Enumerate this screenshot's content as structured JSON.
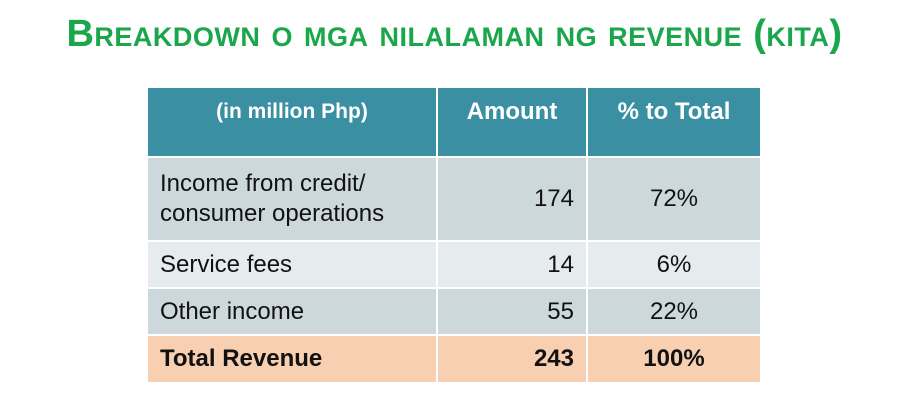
{
  "title": "Breakdown o mga nilalaman ng revenue (kita)",
  "table": {
    "headers": [
      "(in million Php)",
      "Amount",
      "% to Total"
    ],
    "rows": [
      {
        "label": "Income from credit/ consumer operations",
        "amount": "174",
        "percent": "72%"
      },
      {
        "label": "Service fees",
        "amount": "14",
        "percent": "6%"
      },
      {
        "label": "Other income",
        "amount": "55",
        "percent": "22%"
      }
    ],
    "total": {
      "label": "Total Revenue",
      "amount": "243",
      "percent": "100%"
    }
  },
  "colors": {
    "title": "#1aa64b",
    "header_bg": "#3a8fa3",
    "row_dark": "#cdd8dc",
    "row_light": "#e6ebed",
    "total_bg": "#f8cfb0"
  }
}
